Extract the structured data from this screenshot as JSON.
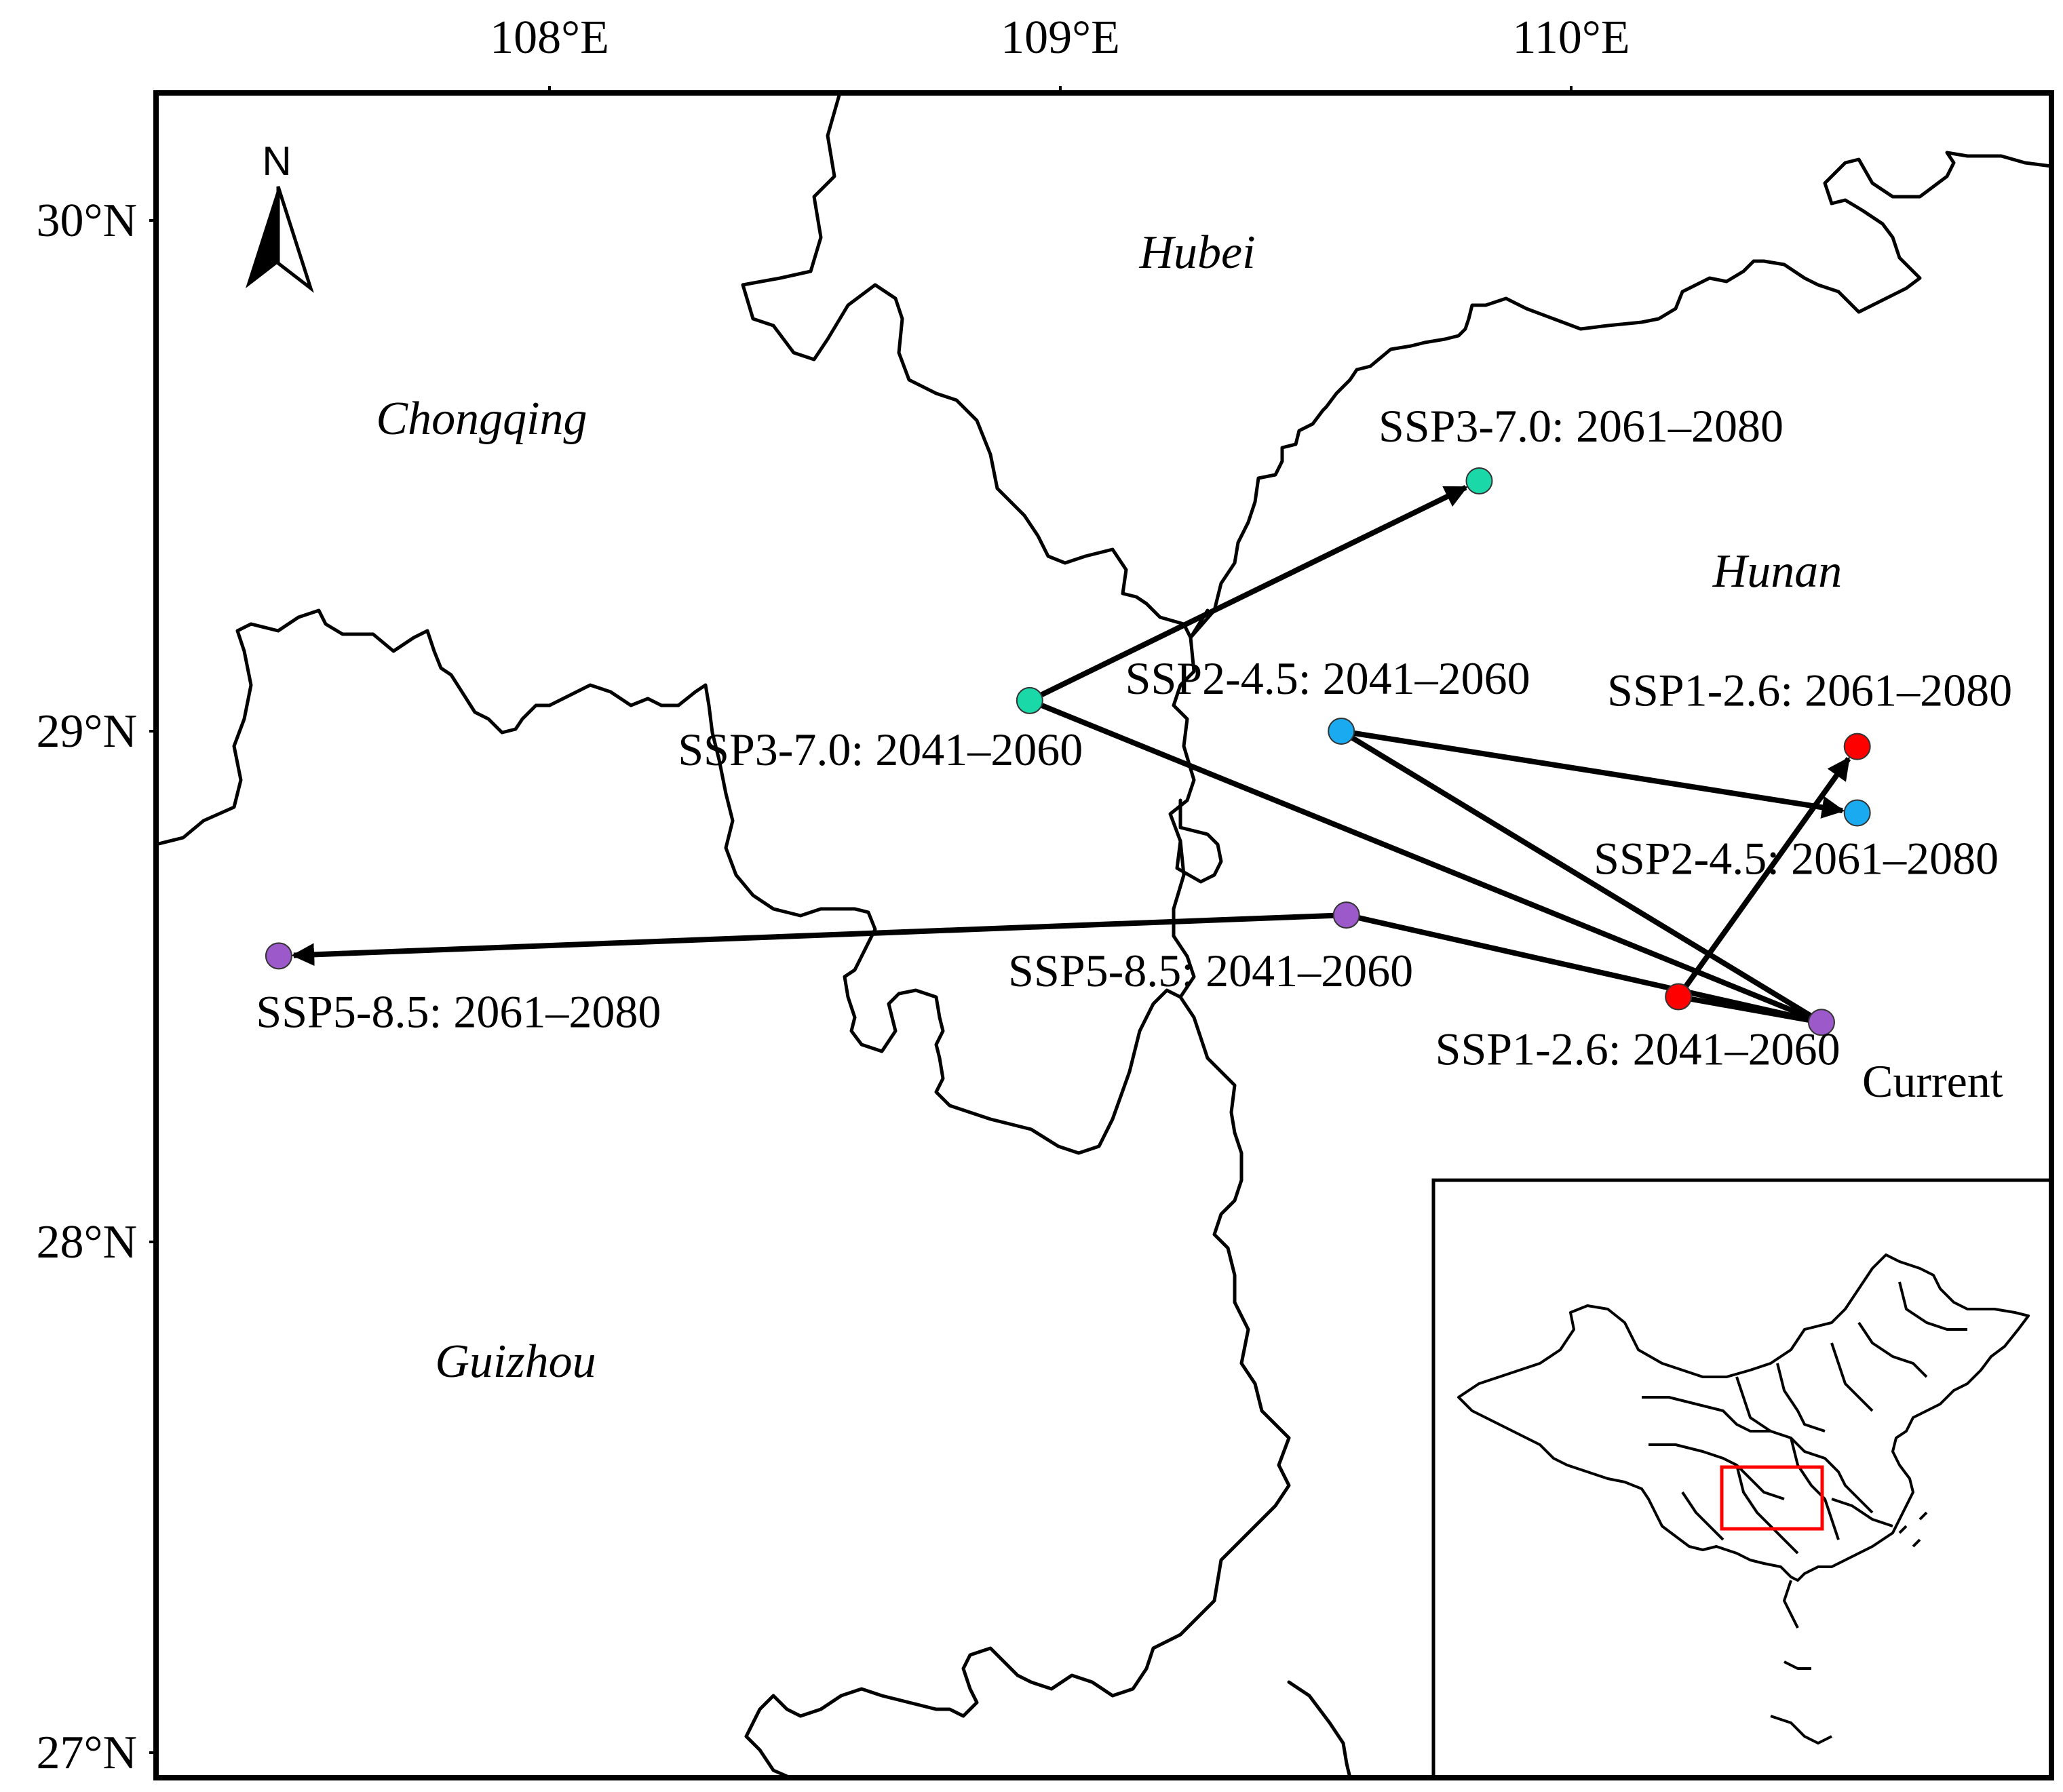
{
  "axes": {
    "lon_ticks": [
      "108°E",
      "109°E",
      "110°E"
    ],
    "lat_ticks": [
      "30°N",
      "29°N",
      "28°N",
      "27°N"
    ]
  },
  "compass": {
    "label": "N",
    "icon": "north-arrow-icon"
  },
  "provinces": [
    {
      "id": "hubei",
      "name": "Hubei"
    },
    {
      "id": "chongqing",
      "name": "Chongqing"
    },
    {
      "id": "hunan",
      "name": "Hunan"
    },
    {
      "id": "guizhou",
      "name": "Guizhou"
    }
  ],
  "colors": {
    "current": "#9b59c9",
    "ssp126": "#ff0000",
    "ssp245": "#1aaaf0",
    "ssp370": "#1ad8a8",
    "ssp585": "#9b59c9",
    "inset_box": "#ff0000"
  },
  "centroids": [
    {
      "id": "current",
      "label": "Current",
      "scenario": "current",
      "lon": 110.49,
      "lat": 28.43
    },
    {
      "id": "ssp126_2041",
      "label": "SSP1-2.6: 2041–2060",
      "scenario": "ssp126",
      "lon": 110.21,
      "lat": 28.48
    },
    {
      "id": "ssp126_2061",
      "label": "SSP1-2.6: 2061–2080",
      "scenario": "ssp126",
      "lon": 110.56,
      "lat": 28.97
    },
    {
      "id": "ssp245_2041",
      "label": "SSP2-4.5: 2041–2060",
      "scenario": "ssp245",
      "lon": 109.55,
      "lat": 29.0
    },
    {
      "id": "ssp245_2061",
      "label": "SSP2-4.5: 2061–2080",
      "scenario": "ssp245",
      "lon": 110.56,
      "lat": 28.84
    },
    {
      "id": "ssp370_2041",
      "label": "SSP3-7.0: 2041–2060",
      "scenario": "ssp370",
      "lon": 108.94,
      "lat": 29.06
    },
    {
      "id": "ssp370_2061",
      "label": "SSP3-7.0: 2061–2080",
      "scenario": "ssp370",
      "lon": 109.82,
      "lat": 29.49
    },
    {
      "id": "ssp585_2041",
      "label": "SSP5-8.5: 2041–2060",
      "scenario": "ssp585",
      "lon": 109.56,
      "lat": 28.64
    },
    {
      "id": "ssp585_2061",
      "label": "SSP5-8.5: 2061–2080",
      "scenario": "ssp585",
      "lon": 107.47,
      "lat": 28.56
    }
  ],
  "shifts": [
    {
      "from": "current",
      "to": "ssp126_2041",
      "arrowhead": false
    },
    {
      "from": "ssp126_2041",
      "to": "ssp126_2061",
      "arrowhead": true
    },
    {
      "from": "current",
      "to": "ssp245_2041",
      "arrowhead": false
    },
    {
      "from": "ssp245_2041",
      "to": "ssp245_2061",
      "arrowhead": true
    },
    {
      "from": "current",
      "to": "ssp370_2041",
      "arrowhead": false
    },
    {
      "from": "ssp370_2041",
      "to": "ssp370_2061",
      "arrowhead": true
    },
    {
      "from": "current",
      "to": "ssp585_2041",
      "arrowhead": false
    },
    {
      "from": "ssp585_2041",
      "to": "ssp585_2061",
      "arrowhead": true
    }
  ]
}
